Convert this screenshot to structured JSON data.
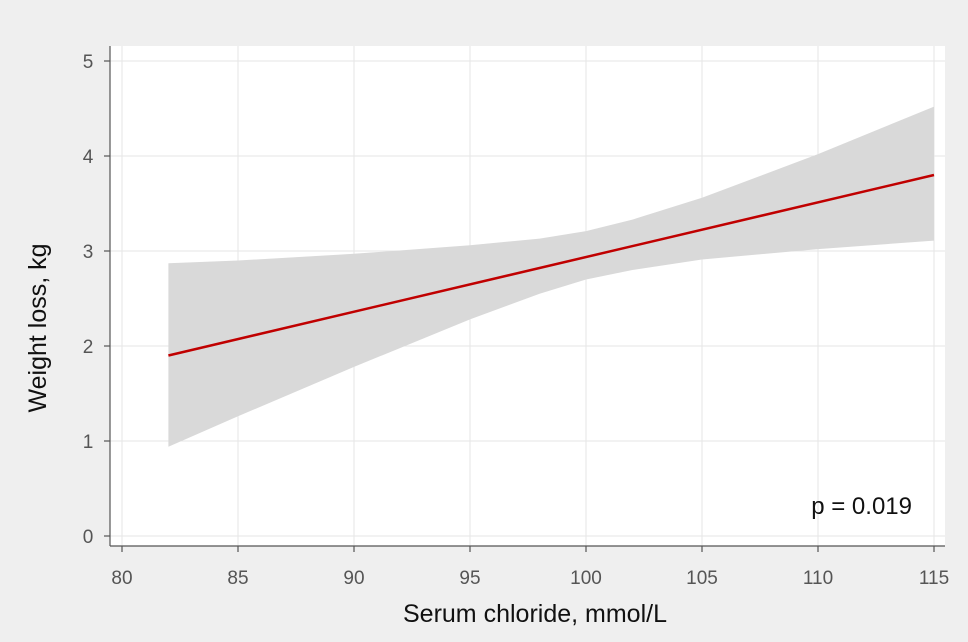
{
  "chart_data": {
    "type": "line",
    "title": "",
    "xlabel": "Serum chloride, mmol/L",
    "ylabel": "Weight loss, kg",
    "xlim": [
      80,
      115
    ],
    "ylim": [
      0,
      5
    ],
    "xticks": [
      80,
      85,
      90,
      95,
      100,
      105,
      110,
      115
    ],
    "yticks": [
      0,
      1,
      2,
      3,
      4,
      5
    ],
    "grid": true,
    "legend": "none",
    "annotation": "p = 0.019",
    "line_color": "#c00000",
    "band_color": "#d9d9d9",
    "series": [
      {
        "x": [
          82,
          115
        ],
        "y": [
          1.9,
          3.8
        ]
      }
    ],
    "confidence_band": {
      "x": [
        82,
        85,
        90,
        95,
        98,
        100,
        102,
        105,
        110,
        115
      ],
      "upper": [
        2.87,
        2.9,
        2.97,
        3.06,
        3.13,
        3.21,
        3.33,
        3.56,
        4.02,
        4.52
      ],
      "lower": [
        0.94,
        1.26,
        1.78,
        2.28,
        2.55,
        2.7,
        2.8,
        2.91,
        3.02,
        3.11
      ]
    }
  }
}
